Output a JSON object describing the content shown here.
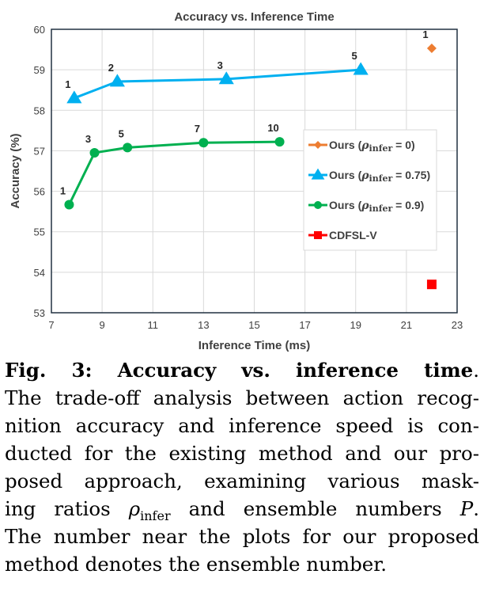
{
  "chart_data": {
    "type": "line",
    "title": "Accuracy vs. Inference Time",
    "xlabel": "Inference Time (ms)",
    "ylabel": "Accuracy (%)",
    "xlim": [
      7,
      23
    ],
    "ylim": [
      53,
      60
    ],
    "xticks": [
      7,
      9,
      11,
      13,
      15,
      17,
      19,
      21,
      23
    ],
    "yticks": [
      53,
      54,
      55,
      56,
      57,
      58,
      59,
      60
    ],
    "grid": true,
    "legend_placement": "right",
    "series": [
      {
        "name": "Ours (ρinfer = 0)",
        "legend_prefix": "Ours (",
        "legend_var": "ρ",
        "legend_sub": "infer",
        "legend_suffix": " = 0)",
        "color": "#ED7D31",
        "marker": "diamond",
        "line": false,
        "points": [
          {
            "x": 22.0,
            "y": 59.53,
            "label": "1"
          }
        ]
      },
      {
        "name": "Ours (ρinfer = 0.75)",
        "legend_prefix": "Ours (",
        "legend_var": "ρ",
        "legend_sub": "infer",
        "legend_suffix": " = 0.75)",
        "color": "#00B0F0",
        "marker": "triangle",
        "line": true,
        "points": [
          {
            "x": 7.9,
            "y": 58.3,
            "label": "1"
          },
          {
            "x": 9.6,
            "y": 58.71,
            "label": "2"
          },
          {
            "x": 13.9,
            "y": 58.77,
            "label": "3"
          },
          {
            "x": 19.2,
            "y": 59.0,
            "label": "5"
          }
        ]
      },
      {
        "name": "Ours (ρinfer = 0.9)",
        "legend_prefix": "Ours (",
        "legend_var": "ρ",
        "legend_sub": "infer",
        "legend_suffix": " = 0.9)",
        "color": "#00B050",
        "marker": "circle",
        "line": true,
        "points": [
          {
            "x": 7.7,
            "y": 55.67,
            "label": "1"
          },
          {
            "x": 8.7,
            "y": 56.95,
            "label": "3"
          },
          {
            "x": 10.0,
            "y": 57.08,
            "label": "5"
          },
          {
            "x": 13.0,
            "y": 57.2,
            "label": "7"
          },
          {
            "x": 16.0,
            "y": 57.22,
            "label": "10"
          }
        ]
      },
      {
        "name": "CDFSL-V",
        "legend_prefix": "CDFSL-V",
        "legend_var": "",
        "legend_sub": "",
        "legend_suffix": "",
        "color": "#FF0000",
        "marker": "square",
        "line": false,
        "points": [
          {
            "x": 22.0,
            "y": 53.7
          }
        ]
      }
    ]
  },
  "caption": {
    "fig_label": "Fig. 3:",
    "fig_title": " Accuracy vs. inference time",
    "lines": [
      "The trade-off analysis between action recog-",
      "nition accuracy and inference speed is con-",
      "ducted for the existing method and our pro-",
      "posed approach, examining various mask-"
    ],
    "line5_a": "ing ratios ",
    "line5_var": "ρ",
    "line5_sub": "infer",
    "line5_b": " and ensemble numbers ",
    "line5_var2": "P",
    "line6": "The number near the plots for our proposed",
    "line7": "method denotes the ensemble number."
  }
}
